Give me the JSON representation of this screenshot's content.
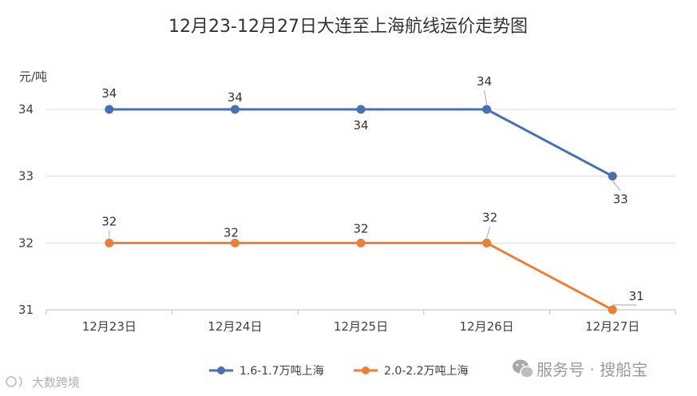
{
  "chart_data": {
    "type": "line",
    "title": "12月23-12月27日大连至上海航线运价走势图",
    "y_unit_label": "元/吨",
    "categories": [
      "12月23日",
      "12月24日",
      "12月25日",
      "12月26日",
      "12月27日"
    ],
    "ylim": [
      31,
      34
    ],
    "yticks": [
      31,
      32,
      33,
      34
    ],
    "grid": true,
    "legend_position": "bottom",
    "series": [
      {
        "name": "1.6-1.7万吨上海",
        "values": [
          34,
          34,
          34,
          34,
          33
        ],
        "color": "#4a6fae"
      },
      {
        "name": "2.0-2.2万吨上海",
        "values": [
          32,
          32,
          32,
          32,
          31
        ],
        "color": "#e8803a"
      }
    ]
  },
  "watermark": {
    "text": "服务号 · 搜船宝",
    "corner_text": "大数跨境",
    "icon": "wechat-icon"
  }
}
